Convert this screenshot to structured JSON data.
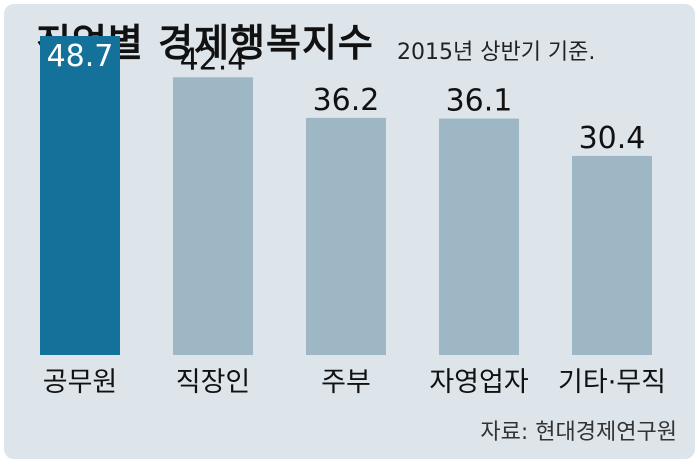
{
  "colors": {
    "background": "#dde5ea",
    "highlight_bar": "#14729a",
    "normal_bar": "#9db8c4",
    "text": "#111111",
    "highlight_value_text": "#ffffff"
  },
  "chart_data": {
    "type": "bar",
    "title": "직업별 경제행복지수",
    "subtitle": "2015년 상반기 기준.",
    "source": "자료: 현대경제연구원",
    "categories": [
      "공무원",
      "직장인",
      "주부",
      "자영업자",
      "기타·무직"
    ],
    "values": [
      48.7,
      42.4,
      36.2,
      36.1,
      30.4
    ],
    "value_labels": [
      "48.7",
      "42.4",
      "36.2",
      "36.1",
      "30.4"
    ],
    "highlight_index": 0,
    "grid": false,
    "legend": "none",
    "ylim": [
      0,
      70
    ]
  }
}
